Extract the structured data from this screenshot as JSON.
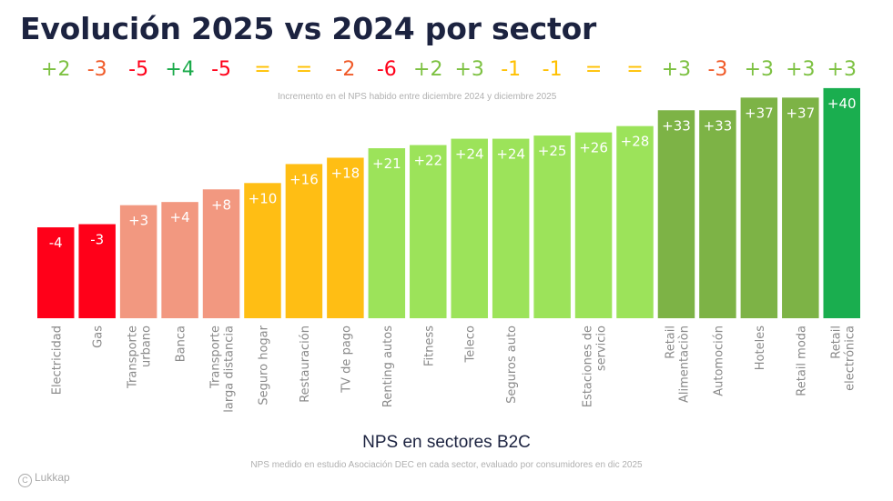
{
  "title": "Evolución 2025 vs 2024 por sector",
  "subtitle": "Incremento en el NPS habido entre diciembre 2024 y diciembre 2025",
  "credit": "Lukkap",
  "credit_icon": "copyright-icon",
  "colors": {
    "title": "#1c2340",
    "bar_red": "#ff0019",
    "bar_salmon": "#f29880",
    "bar_yellow": "#ffbe14",
    "bar_lightgreen": "#9ce35a",
    "bar_midgreen": "#7db346",
    "bar_darkgreen": "#1aae4f",
    "delta_pos_light": "#7dc142",
    "delta_pos_dark": "#1aaa4a",
    "delta_neg_orange": "#f05a28",
    "delta_neg_red": "#ff0019",
    "delta_neutral": "#ffc000"
  },
  "chart_data": {
    "type": "bar",
    "title": "Evolución 2025 vs 2024 por sector",
    "subtitle": "Incremento en el NPS habido entre diciembre 2024 y diciembre 2025",
    "xlabel": "NPS en sectores B2C",
    "ylabel": "",
    "footnote": "NPS medido en estudio Asociación DEC en cada sector, evaluado por consumidores en dic 2025",
    "ylim": [
      -8,
      40
    ],
    "grid": false,
    "legend": "none",
    "categories": [
      [
        "Electricidad"
      ],
      [
        "Gas"
      ],
      [
        "Transporte",
        "urbano"
      ],
      [
        "Banca"
      ],
      [
        "Transporte",
        "larga distancia"
      ],
      [
        "Seguro hogar"
      ],
      [
        "Restauración"
      ],
      [
        "TV de pago"
      ],
      [
        "Renting autos"
      ],
      [
        "Fitness"
      ],
      [
        "Teleco"
      ],
      [
        "Seguros auto"
      ],
      [],
      [
        "Estaciones de",
        "servicio"
      ],
      [],
      [
        "Retail",
        "Alimentaciòn"
      ],
      [
        "Automoción"
      ],
      [
        "Hoteles"
      ],
      [
        "Retail moda"
      ],
      [
        "Retail",
        "electrónica"
      ]
    ],
    "values": [
      -4,
      -3,
      3,
      4,
      8,
      10,
      16,
      18,
      21,
      22,
      24,
      24,
      25,
      26,
      28,
      33,
      33,
      37,
      37,
      40
    ],
    "data_labels": [
      "-4",
      "-3",
      "+3",
      "+4",
      "+8",
      "+10",
      "+16",
      "+18",
      "+21",
      "+22",
      "+24",
      "+24",
      "+25",
      "+26",
      "+28",
      "+33",
      "+33",
      "+37",
      "+37",
      "+40"
    ],
    "bar_color_keys": [
      "bar_red",
      "bar_red",
      "bar_salmon",
      "bar_salmon",
      "bar_salmon",
      "bar_yellow",
      "bar_yellow",
      "bar_yellow",
      "bar_lightgreen",
      "bar_lightgreen",
      "bar_lightgreen",
      "bar_lightgreen",
      "bar_lightgreen",
      "bar_lightgreen",
      "bar_lightgreen",
      "bar_midgreen",
      "bar_midgreen",
      "bar_midgreen",
      "bar_midgreen",
      "bar_darkgreen"
    ],
    "deltas": [
      "+2",
      "-3",
      "-5",
      "+4",
      "-5",
      "=",
      "=",
      "-2",
      "-6",
      "+2",
      "+3",
      "-1",
      "-1",
      "=",
      "=",
      "+3",
      "-3",
      "+3",
      "+3",
      "+3"
    ],
    "delta_color_keys": [
      "delta_pos_light",
      "delta_neg_orange",
      "delta_neg_red",
      "delta_pos_dark",
      "delta_neg_red",
      "delta_neutral",
      "delta_neutral",
      "delta_neg_orange",
      "delta_neg_red",
      "delta_pos_light",
      "delta_pos_light",
      "delta_neutral",
      "delta_neutral",
      "delta_neutral",
      "delta_neutral",
      "delta_pos_light",
      "delta_neg_orange",
      "delta_pos_light",
      "delta_pos_light",
      "delta_pos_light"
    ]
  }
}
